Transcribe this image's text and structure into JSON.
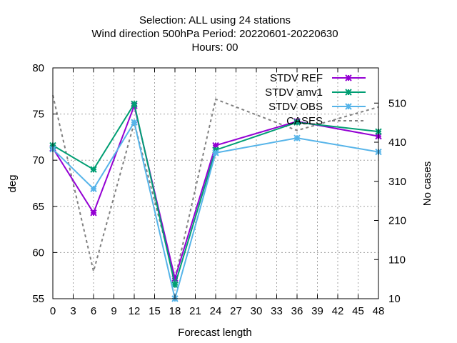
{
  "chart_data": {
    "type": "line",
    "title_lines": [
      "Selection: ALL using    24 stations",
      "Wind direction 500hPa   Period: 20220601-20220630",
      "Hours:  00"
    ],
    "xlabel": "Forecast length",
    "ylabel": "deg",
    "y2label": "No cases",
    "xlim": [
      0,
      48
    ],
    "ylim": [
      55,
      80
    ],
    "y2lim": [
      10,
      600
    ],
    "x_ticks": [
      0,
      3,
      6,
      9,
      12,
      15,
      18,
      21,
      24,
      27,
      30,
      33,
      36,
      39,
      42,
      45,
      48
    ],
    "y_ticks": [
      55,
      60,
      65,
      70,
      75,
      80
    ],
    "y2_ticks": [
      10,
      110,
      210,
      310,
      410,
      510
    ],
    "grid": true,
    "legend_position": "top-right",
    "x": [
      0,
      6,
      12,
      18,
      24,
      36,
      48
    ],
    "series": [
      {
        "name": "STDV REF",
        "color": "#9400d3",
        "marker": "x",
        "axis": "y",
        "values": [
          71.3,
          64.3,
          75.9,
          57.2,
          71.6,
          74.2,
          72.6
        ]
      },
      {
        "name": "STDV amv1",
        "color": "#009e73",
        "marker": "x",
        "axis": "y",
        "values": [
          71.6,
          69.0,
          76.1,
          56.5,
          71.1,
          74.1,
          73.1
        ]
      },
      {
        "name": "STDV OBS",
        "color": "#56b4e9",
        "marker": "x",
        "axis": "y",
        "values": [
          71.2,
          66.9,
          74.1,
          55.0,
          70.8,
          72.4,
          70.9
        ]
      },
      {
        "name": "CASES",
        "color": "#808080",
        "marker": "none",
        "dashed": true,
        "axis": "y2",
        "values": [
          530,
          80,
          460,
          60,
          520,
          440,
          500
        ]
      }
    ]
  }
}
